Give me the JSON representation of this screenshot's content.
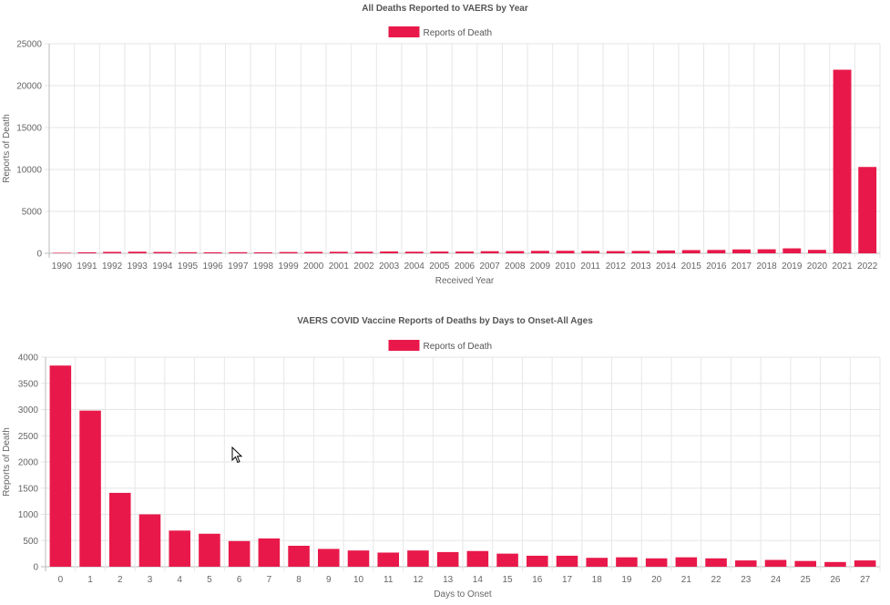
{
  "charts": [
    {
      "title": "All Deaths Reported to VAERS by Year",
      "legend_label": "Reports of Death",
      "xlabel": "Received Year",
      "ylabel": "Reports of Death"
    },
    {
      "title": "VAERS COVID Vaccine Reports of Deaths by Days to Onset-All Ages",
      "legend_label": "Reports of Death",
      "xlabel": "Days to Onset",
      "ylabel": "Reports of Death"
    }
  ],
  "bar_color": "#e8194a",
  "chart_data": [
    {
      "type": "bar",
      "title": "All Deaths Reported to VAERS by Year",
      "xlabel": "Received Year",
      "ylabel": "Reports of Death",
      "ylim": [
        0,
        25000
      ],
      "yticks": [
        0,
        5000,
        10000,
        15000,
        20000,
        25000
      ],
      "grid": true,
      "legend": "top-center",
      "categories": [
        "1990",
        "1991",
        "1992",
        "1993",
        "1994",
        "1995",
        "1996",
        "1997",
        "1998",
        "1999",
        "2000",
        "2001",
        "2002",
        "2003",
        "2004",
        "2005",
        "2006",
        "2007",
        "2008",
        "2009",
        "2010",
        "2011",
        "2012",
        "2013",
        "2014",
        "2015",
        "2016",
        "2017",
        "2018",
        "2019",
        "2020",
        "2021",
        "2022"
      ],
      "series": [
        {
          "name": "Reports of Death",
          "values": [
            60,
            120,
            170,
            190,
            160,
            130,
            120,
            130,
            120,
            150,
            170,
            180,
            190,
            220,
            190,
            210,
            210,
            250,
            260,
            290,
            300,
            280,
            260,
            280,
            340,
            380,
            400,
            460,
            480,
            590,
            410,
            21900,
            10300
          ]
        }
      ]
    },
    {
      "type": "bar",
      "title": "VAERS COVID Vaccine Reports of Deaths by Days to Onset-All Ages",
      "xlabel": "Days to Onset",
      "ylabel": "Reports of Death",
      "ylim": [
        0,
        4000
      ],
      "yticks": [
        0,
        500,
        1000,
        1500,
        2000,
        2500,
        3000,
        3500,
        4000
      ],
      "grid": true,
      "legend": "top-center",
      "categories": [
        "0",
        "1",
        "2",
        "3",
        "4",
        "5",
        "6",
        "7",
        "8",
        "9",
        "10",
        "11",
        "12",
        "13",
        "14",
        "15",
        "16",
        "17",
        "18",
        "19",
        "20",
        "21",
        "22",
        "23",
        "24",
        "25",
        "26",
        "27"
      ],
      "series": [
        {
          "name": "Reports of Death",
          "values": [
            3840,
            2980,
            1410,
            1000,
            690,
            630,
            490,
            540,
            400,
            340,
            310,
            270,
            310,
            280,
            300,
            250,
            210,
            210,
            170,
            180,
            160,
            180,
            160,
            120,
            130,
            110,
            90,
            120
          ]
        }
      ]
    }
  ]
}
